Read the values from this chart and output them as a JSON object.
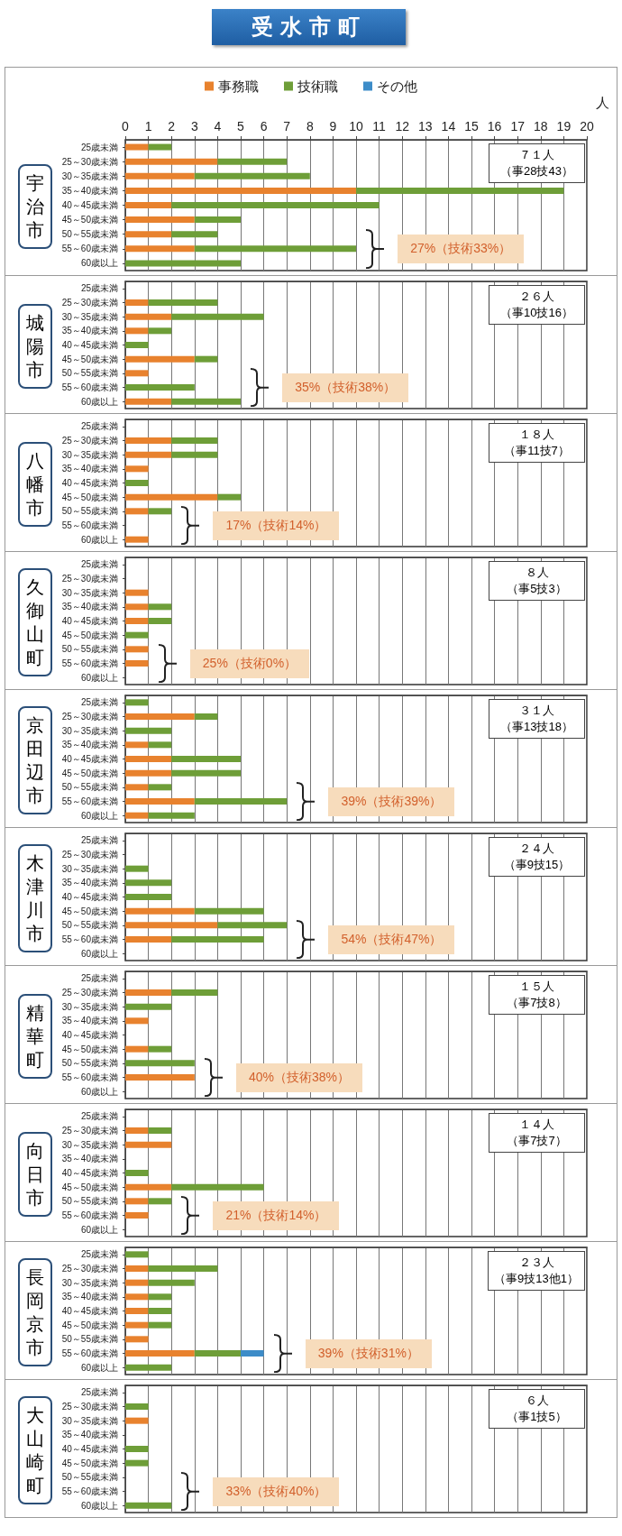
{
  "chart_data": [
    {
      "type": "bar",
      "orientation": "horizontal",
      "stacked": true,
      "title": "受水市町",
      "ylabel": "宇治市",
      "xlabel": "人",
      "legend": "top",
      "grid": "x",
      "xlim": [
        0,
        20
      ],
      "xticks": [
        0,
        1,
        2,
        3,
        4,
        5,
        6,
        7,
        8,
        9,
        10,
        11,
        12,
        13,
        14,
        15,
        16,
        17,
        18,
        19,
        20
      ],
      "categories": [
        "25歳未満",
        "25～30歳未満",
        "30～35歳未満",
        "35～40歳未満",
        "40～45歳未満",
        "45～50歳未満",
        "50～55歳未満",
        "55～60歳未満",
        "60歳以上"
      ],
      "series": [
        {
          "name": "事務職",
          "color": "#e8822e",
          "values": [
            1,
            4,
            3,
            10,
            2,
            3,
            2,
            3,
            0
          ]
        },
        {
          "name": "技術職",
          "color": "#6e9e38",
          "values": [
            1,
            3,
            5,
            9,
            9,
            2,
            2,
            7,
            5
          ]
        },
        {
          "name": "その他",
          "color": "#3d8cc8",
          "values": [
            0,
            0,
            0,
            0,
            0,
            0,
            0,
            0,
            0
          ]
        }
      ],
      "annotations": [
        "７１人",
        "（事28技43）",
        "27%（技術33%）"
      ]
    },
    {
      "type": "bar",
      "orientation": "horizontal",
      "stacked": true,
      "ylabel": "城陽市",
      "grid": "x",
      "tick_labels": "y",
      "xlim": [
        0,
        20
      ],
      "xticks": [
        0,
        1,
        2,
        3,
        4,
        5,
        6,
        7,
        8,
        9,
        10,
        11,
        12,
        13,
        14,
        15,
        16,
        17,
        18,
        19,
        20
      ],
      "categories": [
        "25歳未満",
        "25～30歳未満",
        "30～35歳未満",
        "35～40歳未満",
        "40～45歳未満",
        "45～50歳未満",
        "50～55歳未満",
        "55～60歳未満",
        "60歳以上"
      ],
      "series": [
        {
          "color": "#e8822e",
          "values": [
            0,
            1,
            2,
            1,
            0,
            3,
            1,
            0,
            2
          ]
        },
        {
          "color": "#6e9e38",
          "values": [
            0,
            3,
            4,
            1,
            1,
            1,
            0,
            3,
            3
          ]
        }
      ],
      "annotations": [
        "２６人",
        "（事10技16）",
        "35%（技術38%）"
      ]
    },
    {
      "type": "bar",
      "orientation": "horizontal",
      "stacked": true,
      "ylabel": "八幡市",
      "grid": "x",
      "tick_labels": "y",
      "xlim": [
        0,
        20
      ],
      "xticks": [
        0,
        1,
        2,
        3,
        4,
        5,
        6,
        7,
        8,
        9,
        10,
        11,
        12,
        13,
        14,
        15,
        16,
        17,
        18,
        19,
        20
      ],
      "categories": [
        "25歳未満",
        "25～30歳未満",
        "30～35歳未満",
        "35～40歳未満",
        "40～45歳未満",
        "45～50歳未満",
        "50～55歳未満",
        "55～60歳未満",
        "60歳以上"
      ],
      "series": [
        {
          "color": "#e8822e",
          "values": [
            0,
            2,
            2,
            1,
            0,
            4,
            1,
            0,
            1
          ]
        },
        {
          "color": "#6e9e38",
          "values": [
            0,
            2,
            2,
            0,
            1,
            1,
            1,
            0,
            0
          ]
        }
      ],
      "annotations": [
        "１８人",
        "（事11技7）",
        "17%（技術14%）"
      ]
    },
    {
      "type": "bar",
      "orientation": "horizontal",
      "stacked": true,
      "ylabel": "久御山町",
      "grid": "x",
      "tick_labels": "y",
      "xlim": [
        0,
        20
      ],
      "xticks": [
        0,
        1,
        2,
        3,
        4,
        5,
        6,
        7,
        8,
        9,
        10,
        11,
        12,
        13,
        14,
        15,
        16,
        17,
        18,
        19,
        20
      ],
      "categories": [
        "25歳未満",
        "25～30歳未満",
        "30～35歳未満",
        "35～40歳未満",
        "40～45歳未満",
        "45～50歳未満",
        "50～55歳未満",
        "55～60歳未満",
        "60歳以上"
      ],
      "series": [
        {
          "color": "#e8822e",
          "values": [
            0,
            0,
            1,
            1,
            1,
            0,
            1,
            1,
            0
          ]
        },
        {
          "color": "#6e9e38",
          "values": [
            0,
            0,
            0,
            1,
            1,
            1,
            0,
            0,
            0
          ]
        }
      ],
      "annotations": [
        "８人",
        "（事5技3）",
        "25%（技術0%）"
      ]
    },
    {
      "type": "bar",
      "orientation": "horizontal",
      "stacked": true,
      "ylabel": "京田辺市",
      "grid": "x",
      "tick_labels": "y",
      "xlim": [
        0,
        20
      ],
      "xticks": [
        0,
        1,
        2,
        3,
        4,
        5,
        6,
        7,
        8,
        9,
        10,
        11,
        12,
        13,
        14,
        15,
        16,
        17,
        18,
        19,
        20
      ],
      "categories": [
        "25歳未満",
        "25～30歳未満",
        "30～35歳未満",
        "35～40歳未満",
        "40～45歳未満",
        "45～50歳未満",
        "50～55歳未満",
        "55～60歳未満",
        "60歳以上"
      ],
      "series": [
        {
          "color": "#e8822e",
          "values": [
            0,
            3,
            0,
            1,
            2,
            2,
            1,
            3,
            1
          ]
        },
        {
          "color": "#6e9e38",
          "values": [
            1,
            1,
            2,
            1,
            3,
            3,
            1,
            4,
            2
          ]
        }
      ],
      "annotations": [
        "３１人",
        "（事13技18）",
        "39%（技術39%）"
      ]
    },
    {
      "type": "bar",
      "orientation": "horizontal",
      "stacked": true,
      "ylabel": "木津川市",
      "grid": "x",
      "tick_labels": "y",
      "xlim": [
        0,
        20
      ],
      "xticks": [
        0,
        1,
        2,
        3,
        4,
        5,
        6,
        7,
        8,
        9,
        10,
        11,
        12,
        13,
        14,
        15,
        16,
        17,
        18,
        19,
        20
      ],
      "categories": [
        "25歳未満",
        "25～30歳未満",
        "30～35歳未満",
        "35～40歳未満",
        "40～45歳未満",
        "45～50歳未満",
        "50～55歳未満",
        "55～60歳未満",
        "60歳以上"
      ],
      "series": [
        {
          "color": "#e8822e",
          "values": [
            0,
            0,
            0,
            0,
            0,
            3,
            4,
            2,
            0
          ]
        },
        {
          "color": "#6e9e38",
          "values": [
            0,
            0,
            1,
            2,
            2,
            3,
            3,
            4,
            0
          ]
        }
      ],
      "annotations": [
        "２４人",
        "（事9技15）",
        "54%（技術47%）"
      ]
    },
    {
      "type": "bar",
      "orientation": "horizontal",
      "stacked": true,
      "ylabel": "精華町",
      "grid": "x",
      "tick_labels": "y",
      "xlim": [
        0,
        20
      ],
      "xticks": [
        0,
        1,
        2,
        3,
        4,
        5,
        6,
        7,
        8,
        9,
        10,
        11,
        12,
        13,
        14,
        15,
        16,
        17,
        18,
        19,
        20
      ],
      "categories": [
        "25歳未満",
        "25～30歳未満",
        "30～35歳未満",
        "35～40歳未満",
        "40～45歳未満",
        "45～50歳未満",
        "50～55歳未満",
        "55～60歳未満",
        "60歳以上"
      ],
      "series": [
        {
          "color": "#e8822e",
          "values": [
            0,
            2,
            0,
            1,
            0,
            1,
            0,
            3,
            0
          ]
        },
        {
          "color": "#6e9e38",
          "values": [
            0,
            2,
            2,
            0,
            0,
            1,
            3,
            0,
            0
          ]
        }
      ],
      "annotations": [
        "１５人",
        "（事7技8）",
        "40%（技術38%）"
      ]
    },
    {
      "type": "bar",
      "orientation": "horizontal",
      "stacked": true,
      "ylabel": "向日市",
      "grid": "x",
      "tick_labels": "y",
      "xlim": [
        0,
        20
      ],
      "xticks": [
        0,
        1,
        2,
        3,
        4,
        5,
        6,
        7,
        8,
        9,
        10,
        11,
        12,
        13,
        14,
        15,
        16,
        17,
        18,
        19,
        20
      ],
      "categories": [
        "25歳未満",
        "25～30歳未満",
        "30～35歳未満",
        "35～40歳未満",
        "40～45歳未満",
        "45～50歳未満",
        "50～55歳未満",
        "55～60歳未満",
        "60歳以上"
      ],
      "series": [
        {
          "color": "#e8822e",
          "values": [
            0,
            1,
            2,
            0,
            0,
            2,
            1,
            1,
            0
          ]
        },
        {
          "color": "#6e9e38",
          "values": [
            0,
            1,
            0,
            0,
            1,
            4,
            1,
            0,
            0
          ]
        }
      ],
      "annotations": [
        "１４人",
        "（事7技7）",
        "21%（技術14%）"
      ]
    },
    {
      "type": "bar",
      "orientation": "horizontal",
      "stacked": true,
      "ylabel": "長岡京市",
      "grid": "x",
      "tick_labels": "y",
      "xlim": [
        0,
        20
      ],
      "xticks": [
        0,
        1,
        2,
        3,
        4,
        5,
        6,
        7,
        8,
        9,
        10,
        11,
        12,
        13,
        14,
        15,
        16,
        17,
        18,
        19,
        20
      ],
      "categories": [
        "25歳未満",
        "25～30歳未満",
        "30～35歳未満",
        "35～40歳未満",
        "40～45歳未満",
        "45～50歳未満",
        "50～55歳未満",
        "55～60歳未満",
        "60歳以上"
      ],
      "series": [
        {
          "color": "#e8822e",
          "values": [
            0,
            1,
            1,
            1,
            1,
            1,
            1,
            3,
            0
          ]
        },
        {
          "color": "#6e9e38",
          "values": [
            1,
            3,
            2,
            1,
            1,
            1,
            0,
            2,
            2
          ]
        },
        {
          "color": "#3d8cc8",
          "values": [
            0,
            0,
            0,
            0,
            0,
            0,
            0,
            1,
            0
          ]
        }
      ],
      "annotations": [
        "２３人",
        "（事9技13他1）",
        "39%（技術31%）"
      ]
    },
    {
      "type": "bar",
      "orientation": "horizontal",
      "stacked": true,
      "ylabel": "大山崎町",
      "grid": "x",
      "tick_labels": "y",
      "xlim": [
        0,
        20
      ],
      "xticks": [
        0,
        1,
        2,
        3,
        4,
        5,
        6,
        7,
        8,
        9,
        10,
        11,
        12,
        13,
        14,
        15,
        16,
        17,
        18,
        19,
        20
      ],
      "categories": [
        "25歳未満",
        "25～30歳未満",
        "30～35歳未満",
        "35～40歳未満",
        "40～45歳未満",
        "45～50歳未満",
        "50～55歳未満",
        "55～60歳未満",
        "60歳以上"
      ],
      "series": [
        {
          "color": "#e8822e",
          "values": [
            0,
            0,
            1,
            0,
            0,
            0,
            0,
            0,
            0
          ]
        },
        {
          "color": "#6e9e38",
          "values": [
            0,
            1,
            0,
            0,
            1,
            1,
            0,
            0,
            2
          ]
        }
      ],
      "annotations": [
        "６人",
        "（事1技5）",
        "33%（技術40%）"
      ]
    }
  ]
}
